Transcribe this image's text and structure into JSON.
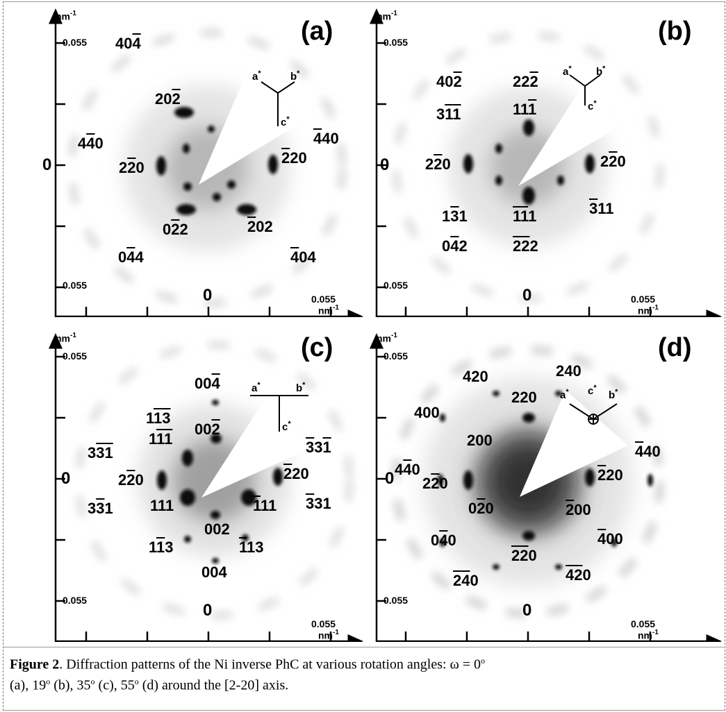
{
  "panels": [
    {
      "id": "a",
      "label": "(a)",
      "y_unit": "nm",
      "y_unit_exp": "-1",
      "x_unit": "nm",
      "x_unit_exp": "-1",
      "tick_top": "0.055",
      "tick_bottom": "0.055",
      "tick_right": "0.055",
      "zero_left": "0",
      "zero_bottom": "0",
      "axes_labels": {
        "a": "a",
        "b": "b",
        "c": "c",
        "star": "*",
        "center": ""
      },
      "spots": [
        {
          "text": "40",
          "bar": "4",
          "pre": ""
        },
        {
          "text": "20",
          "bar": "2",
          "pre": ""
        },
        {
          "text": "4",
          "bar": "4",
          "post": "0",
          "pre": ""
        },
        {
          "text": "2",
          "bar": "2",
          "post": "0",
          "pre": ""
        },
        {
          "text": "",
          "bar": "4",
          "post": "40",
          "pre": ""
        },
        {
          "text": "",
          "bar": "2",
          "post": "20",
          "pre": ""
        },
        {
          "text": "0",
          "bar": "2",
          "post": "2",
          "pre": ""
        },
        {
          "text": "",
          "bar": "2",
          "post": "02",
          "pre": ""
        },
        {
          "text": "0",
          "bar": "4",
          "post": "4",
          "pre": ""
        },
        {
          "text": "",
          "bar": "4",
          "post": "04",
          "pre": ""
        }
      ]
    },
    {
      "id": "b",
      "label": "(b)",
      "y_unit": "nm",
      "y_unit_exp": "-1",
      "x_unit": "nm",
      "x_unit_exp": "-1",
      "tick_top": "0.055",
      "tick_bottom": "0.055",
      "tick_right": "0.055",
      "zero_left": "0",
      "zero_bottom": "0"
    },
    {
      "id": "c",
      "label": "(c)",
      "y_unit": "nm",
      "y_unit_exp": "-1",
      "x_unit": "nm",
      "x_unit_exp": "-1",
      "tick_top": "0.055",
      "tick_bottom": "0.055",
      "tick_right": "0.055",
      "zero_left": "0",
      "zero_bottom": "0"
    },
    {
      "id": "d",
      "label": "(d)",
      "y_unit": "nm",
      "y_unit_exp": "-1",
      "x_unit": "nm",
      "x_unit_exp": "-1",
      "tick_top": "0.055",
      "tick_bottom": "0.055",
      "tick_right": "0.055",
      "zero_left": "0",
      "zero_bottom": "0"
    }
  ],
  "caption": {
    "bold": "Figure 2",
    "text1": ". Diffraction patterns of the Ni inverse PhC at various rotation angles: ω = 0",
    "sup_o": "o",
    "text2": "(a), 19",
    "text3": " (b), 35",
    "text4": " (c), 55",
    "text5": " (d) around the [2-20] axis."
  }
}
